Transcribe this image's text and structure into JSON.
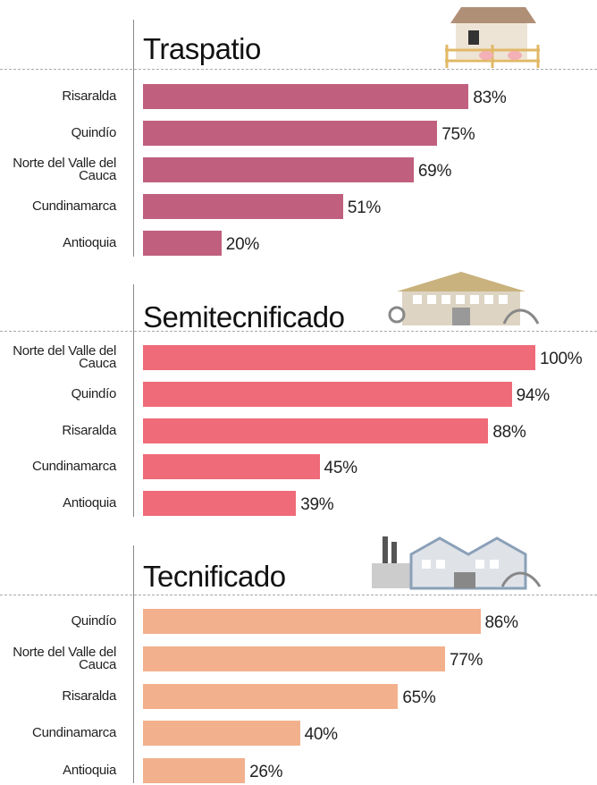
{
  "chart_data": [
    {
      "type": "bar",
      "orientation": "horizontal",
      "title": "Traspatio",
      "color": "#c0607e",
      "categories": [
        "Risaralda",
        "Quindío",
        "Norte del Valle del Cauca",
        "Cundinamarca",
        "Antioquia"
      ],
      "values": [
        83,
        75,
        69,
        51,
        20
      ],
      "value_labels": [
        "83%",
        "75%",
        "69%",
        "51%",
        "20%"
      ],
      "xlim": [
        0,
        100
      ]
    },
    {
      "type": "bar",
      "orientation": "horizontal",
      "title": "Semitecnificado",
      "color": "#ef6b79",
      "categories": [
        "Norte del Valle del Cauca",
        "Quindío",
        "Risaralda",
        "Cundinamarca",
        "Antioquia"
      ],
      "values": [
        100,
        94,
        88,
        45,
        39
      ],
      "value_labels": [
        "100%",
        "94%",
        "88%",
        "45%",
        "39%"
      ],
      "xlim": [
        0,
        100
      ]
    },
    {
      "type": "bar",
      "orientation": "horizontal",
      "title": "Tecnificado",
      "color": "#f2b08d",
      "categories": [
        "Quindío",
        "Norte del Valle del Cauca",
        "Risaralda",
        "Cundinamarca",
        "Antioquia"
      ],
      "values": [
        86,
        77,
        65,
        40,
        26
      ],
      "value_labels": [
        "86%",
        "77%",
        "65%",
        "40%",
        "26%"
      ],
      "xlim": [
        0,
        100
      ]
    }
  ]
}
